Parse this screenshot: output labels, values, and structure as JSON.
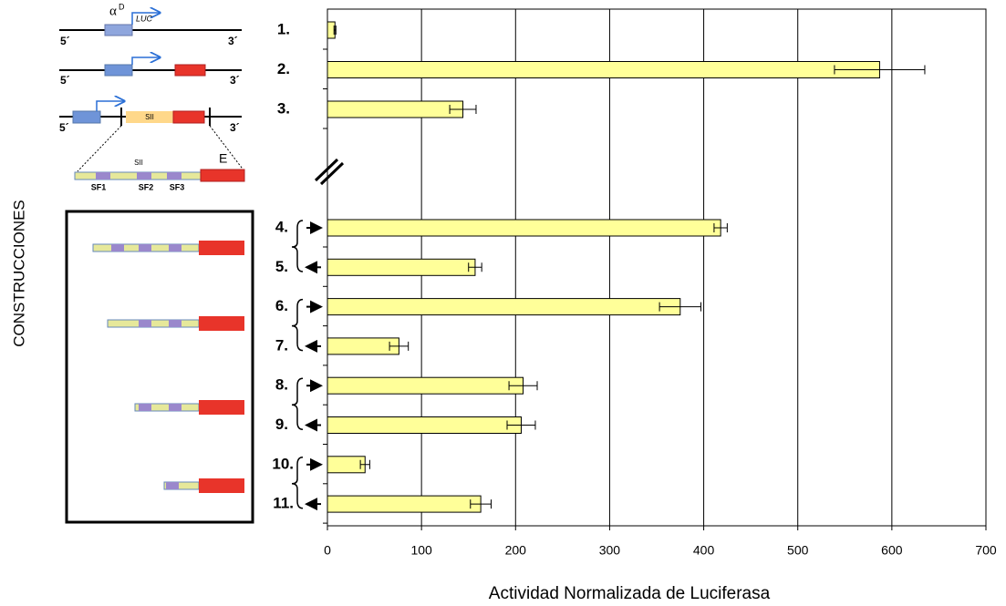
{
  "chart_data": {
    "type": "bar",
    "orientation": "horizontal",
    "categories": [
      "1.",
      "2.",
      "3.",
      "4.",
      "5.",
      "6.",
      "7.",
      "8.",
      "9.",
      "10.",
      "11."
    ],
    "values": [
      8,
      587,
      144,
      418,
      157,
      375,
      76,
      208,
      206,
      40,
      163
    ],
    "errors": [
      1,
      48,
      14,
      7,
      7,
      22,
      10,
      15,
      15,
      5,
      11
    ],
    "color": "#ffff99",
    "xlim": [
      0,
      700
    ],
    "xticks": [
      0,
      100,
      200,
      300,
      400,
      500,
      600,
      700
    ],
    "grid": true,
    "xlabel": "Actividad Normalizada de Luciferasa",
    "ylabel": "CONSTRUCCIONES"
  },
  "diagram": {
    "alpha": "α",
    "alpha_sup": "D",
    "luc": "LUC",
    "ends": [
      "5´",
      "3´",
      "5´",
      "3´",
      "5´",
      "3´"
    ],
    "sii": [
      "SII",
      "SII"
    ],
    "sf": [
      "SF1",
      "SF2",
      "SF3"
    ],
    "e": "E"
  }
}
